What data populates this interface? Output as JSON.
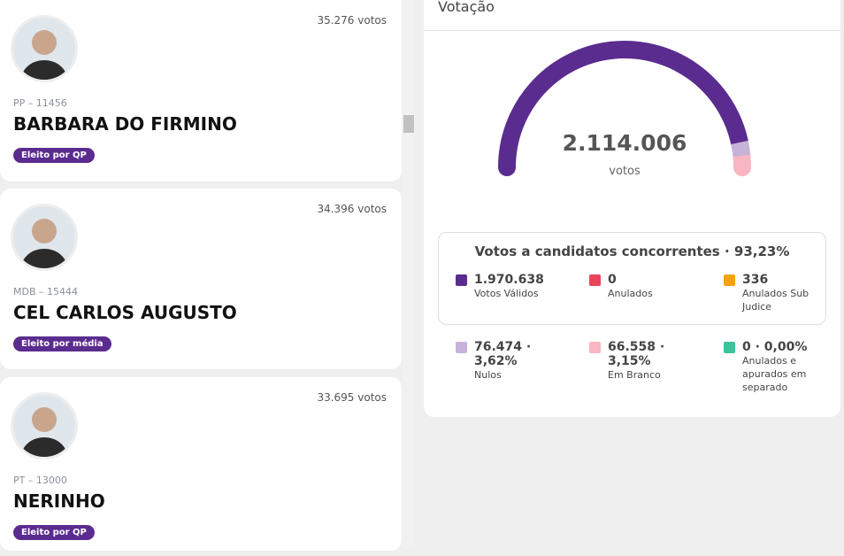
{
  "candidates": [
    {
      "votes": "35.276 votos",
      "party": "PP – 11456",
      "name": "BARBARA DO FIRMINO",
      "badge": "Eleito por QP"
    },
    {
      "votes": "34.396 votos",
      "party": "MDB – 15444",
      "name": "CEL CARLOS AUGUSTO",
      "badge": "Eleito por média"
    },
    {
      "votes": "33.695 votos",
      "party": "PT – 13000",
      "name": "NERINHO",
      "badge": "Eleito por QP"
    }
  ],
  "votacao": {
    "title": "Votação",
    "total": {
      "value": 2114006,
      "label": "2.114.006"
    },
    "total_unit": "votos",
    "box_title": "Votos a candidatos concorrentes · 93,23%",
    "items": [
      {
        "value": 1970638,
        "label": "1.970.638",
        "name": "Votos Válidos",
        "color": "#5b2c8f"
      },
      {
        "value": 0,
        "label": "0",
        "name": "Anulados",
        "color": "#e8445a"
      },
      {
        "value": 336,
        "label": "336",
        "name": "Anulados Sub Judice",
        "color": "#f5a30a"
      },
      {
        "value": 76474,
        "label": "76.474 · 3,62%",
        "name": "Nulos",
        "color": "#c7b3d9"
      },
      {
        "value": 66558,
        "label": "66.558 · 3,15%",
        "name": "Em Branco",
        "color": "#f7b6c1"
      },
      {
        "value": 0,
        "label": "0 · 0,00%",
        "name": "Anulados e apurados em separado",
        "color": "#3cc39b"
      }
    ]
  }
}
